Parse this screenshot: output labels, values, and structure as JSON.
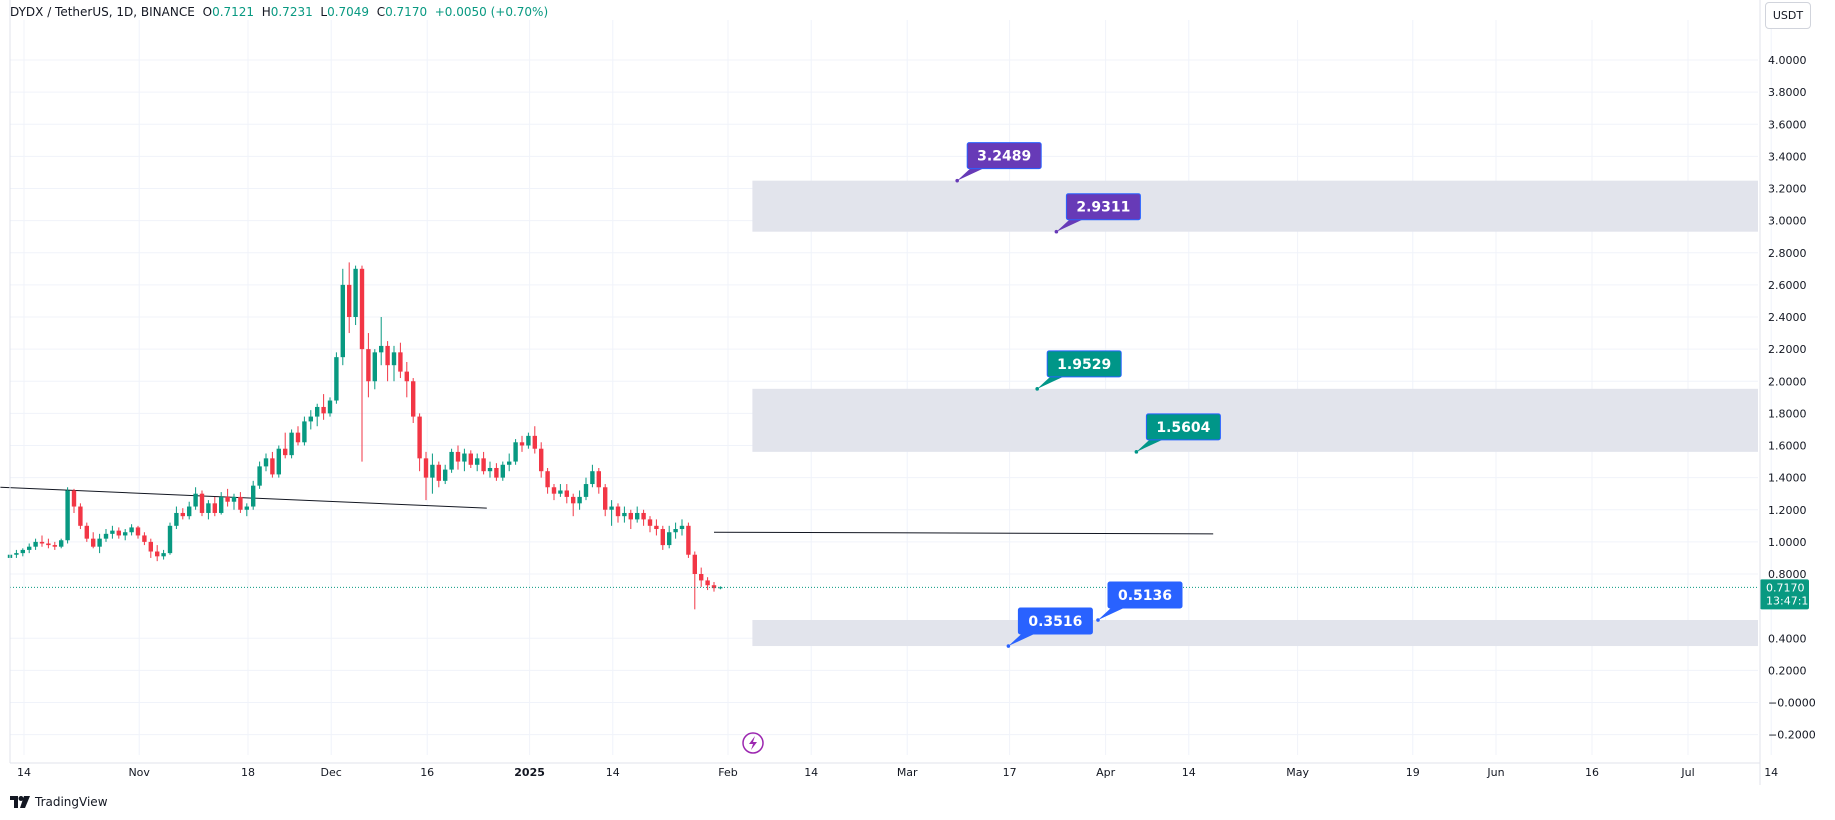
{
  "header": {
    "symbol": "DYDX / TetherUS, 1D, BINANCE",
    "open_label": "O",
    "open": "0.7121",
    "high_label": "H",
    "high": "0.7231",
    "low_label": "L",
    "low": "0.7049",
    "close_label": "C",
    "close": "0.7170",
    "change": "+0.0050 (+0.70%)"
  },
  "currency_button": "USDT",
  "branding": "TradingView",
  "colors": {
    "up": "#089981",
    "down": "#f23645",
    "zone": "#e0e3eb",
    "purple": "#673ab7",
    "teal": "#009688",
    "blue": "#2962ff",
    "grid": "#f0f3fa",
    "text": "#131722"
  },
  "chart_data": {
    "type": "candlestick",
    "price_axis": {
      "ticks": [
        "4.0000",
        "3.8000",
        "3.6000",
        "3.4000",
        "3.2000",
        "3.0000",
        "2.8000",
        "2.6000",
        "2.4000",
        "2.2000",
        "2.0000",
        "1.8000",
        "1.6000",
        "1.4000",
        "1.2000",
        "1.0000",
        "0.8000",
        "0.4000",
        "0.2000",
        "−0.0000",
        "−0.2000"
      ],
      "ylim": [
        -0.28,
        4.2
      ]
    },
    "time_axis": {
      "ticks": [
        {
          "label": "14",
          "bold": false,
          "day": 0
        },
        {
          "label": "Nov",
          "bold": false,
          "day": 18
        },
        {
          "label": "18",
          "bold": false,
          "day": 35
        },
        {
          "label": "Dec",
          "bold": false,
          "day": 48
        },
        {
          "label": "16",
          "bold": false,
          "day": 63
        },
        {
          "label": "2025",
          "bold": true,
          "day": 79
        },
        {
          "label": "14",
          "bold": false,
          "day": 92
        },
        {
          "label": "Feb",
          "bold": false,
          "day": 110
        },
        {
          "label": "14",
          "bold": false,
          "day": 123
        },
        {
          "label": "Mar",
          "bold": false,
          "day": 138
        },
        {
          "label": "17",
          "bold": false,
          "day": 154
        },
        {
          "label": "Apr",
          "bold": false,
          "day": 169
        },
        {
          "label": "14",
          "bold": false,
          "day": 182
        },
        {
          "label": "May",
          "bold": false,
          "day": 199
        },
        {
          "label": "19",
          "bold": false,
          "day": 217
        },
        {
          "label": "Jun",
          "bold": false,
          "day": 230
        },
        {
          "label": "16",
          "bold": false,
          "day": 245
        },
        {
          "label": "Jul",
          "bold": false,
          "day": 260
        },
        {
          "label": "14",
          "bold": false,
          "day": 273
        }
      ]
    },
    "last_price": {
      "value": 0.717,
      "label": "0.7170",
      "countdown": "13:47:13"
    },
    "zones": [
      {
        "bottom": 2.9311,
        "top": 3.2489,
        "start_day": 116,
        "end_day": 999
      },
      {
        "bottom": 1.5604,
        "top": 1.9529,
        "start_day": 116,
        "end_day": 999
      },
      {
        "bottom": 0.3516,
        "top": 0.5136,
        "start_day": 116,
        "end_day": 999
      }
    ],
    "price_labels": [
      {
        "text": "3.2489",
        "value": 3.2489,
        "anchor_day": 148,
        "color": "purple"
      },
      {
        "text": "2.9311",
        "value": 2.9311,
        "anchor_day": 163.5,
        "color": "purple"
      },
      {
        "text": "1.9529",
        "value": 1.9529,
        "anchor_day": 160.5,
        "color": "teal"
      },
      {
        "text": "1.5604",
        "value": 1.5604,
        "anchor_day": 176,
        "color": "teal"
      },
      {
        "text": "0.5136",
        "value": 0.5136,
        "anchor_day": 170,
        "color": "blue"
      },
      {
        "text": "0.3516",
        "value": 0.3516,
        "anchor_day": 156,
        "color": "blue"
      }
    ],
    "trend_lines": [
      {
        "x1": -1.5,
        "y1": 1.34,
        "x2": 74.5,
        "y2": 1.21
      },
      {
        "x1": 110,
        "y1": 1.06,
        "x2": 188,
        "y2": 1.05
      }
    ],
    "candles": [
      [
        0.9,
        0.94,
        0.88,
        0.92
      ],
      [
        0.92,
        0.95,
        0.9,
        0.93
      ],
      [
        0.93,
        0.96,
        0.91,
        0.95
      ],
      [
        0.95,
        0.99,
        0.93,
        0.97
      ],
      [
        0.97,
        1.02,
        0.95,
        1.0
      ],
      [
        1.0,
        1.04,
        0.97,
        0.99
      ],
      [
        0.99,
        1.02,
        0.96,
        0.98
      ],
      [
        0.98,
        1.0,
        0.95,
        0.97
      ],
      [
        0.97,
        1.02,
        0.96,
        1.01
      ],
      [
        1.01,
        1.34,
        0.99,
        1.32
      ],
      [
        1.32,
        1.33,
        1.18,
        1.22
      ],
      [
        1.22,
        1.24,
        1.08,
        1.1
      ],
      [
        1.1,
        1.12,
        1.0,
        1.02
      ],
      [
        1.02,
        1.06,
        0.96,
        0.97
      ],
      [
        0.97,
        1.05,
        0.93,
        1.02
      ],
      [
        1.02,
        1.08,
        1.0,
        1.05
      ],
      [
        1.05,
        1.1,
        1.02,
        1.07
      ],
      [
        1.07,
        1.09,
        1.02,
        1.04
      ],
      [
        1.04,
        1.08,
        1.01,
        1.06
      ],
      [
        1.06,
        1.11,
        1.04,
        1.09
      ],
      [
        1.09,
        1.1,
        1.02,
        1.04
      ],
      [
        1.04,
        1.06,
        0.98,
        1.0
      ],
      [
        1.0,
        1.02,
        0.9,
        0.94
      ],
      [
        0.94,
        0.98,
        0.88,
        0.91
      ],
      [
        0.91,
        0.95,
        0.89,
        0.93
      ],
      [
        0.93,
        1.12,
        0.92,
        1.1
      ],
      [
        1.1,
        1.22,
        1.08,
        1.18
      ],
      [
        1.18,
        1.21,
        1.14,
        1.16
      ],
      [
        1.16,
        1.25,
        1.14,
        1.22
      ],
      [
        1.22,
        1.34,
        1.2,
        1.3
      ],
      [
        1.3,
        1.32,
        1.16,
        1.18
      ],
      [
        1.18,
        1.26,
        1.14,
        1.24
      ],
      [
        1.24,
        1.28,
        1.16,
        1.18
      ],
      [
        1.18,
        1.31,
        1.17,
        1.28
      ],
      [
        1.28,
        1.33,
        1.22,
        1.25
      ],
      [
        1.25,
        1.3,
        1.2,
        1.28
      ],
      [
        1.28,
        1.31,
        1.18,
        1.2
      ],
      [
        1.2,
        1.24,
        1.16,
        1.22
      ],
      [
        1.22,
        1.38,
        1.2,
        1.35
      ],
      [
        1.35,
        1.5,
        1.33,
        1.47
      ],
      [
        1.47,
        1.55,
        1.44,
        1.52
      ],
      [
        1.52,
        1.56,
        1.4,
        1.42
      ],
      [
        1.42,
        1.6,
        1.4,
        1.58
      ],
      [
        1.58,
        1.68,
        1.52,
        1.54
      ],
      [
        1.54,
        1.7,
        1.52,
        1.68
      ],
      [
        1.68,
        1.72,
        1.6,
        1.62
      ],
      [
        1.62,
        1.78,
        1.6,
        1.75
      ],
      [
        1.75,
        1.82,
        1.7,
        1.78
      ],
      [
        1.78,
        1.86,
        1.72,
        1.84
      ],
      [
        1.84,
        1.92,
        1.76,
        1.8
      ],
      [
        1.8,
        1.9,
        1.78,
        1.88
      ],
      [
        1.88,
        2.18,
        1.86,
        2.15
      ],
      [
        2.15,
        2.7,
        2.1,
        2.6
      ],
      [
        2.6,
        2.74,
        2.3,
        2.4
      ],
      [
        2.4,
        2.72,
        2.35,
        2.7
      ],
      [
        2.7,
        2.72,
        1.5,
        2.2
      ],
      [
        2.2,
        2.3,
        1.9,
        2.0
      ],
      [
        2.0,
        2.2,
        1.95,
        2.18
      ],
      [
        2.18,
        2.4,
        2.1,
        2.22
      ],
      [
        2.22,
        2.25,
        2.0,
        2.1
      ],
      [
        2.1,
        2.22,
        2.0,
        2.18
      ],
      [
        2.18,
        2.24,
        2.02,
        2.06
      ],
      [
        2.06,
        2.12,
        1.9,
        2.0
      ],
      [
        2.0,
        2.02,
        1.74,
        1.78
      ],
      [
        1.78,
        1.8,
        1.44,
        1.52
      ],
      [
        1.52,
        1.56,
        1.26,
        1.4
      ],
      [
        1.4,
        1.55,
        1.3,
        1.48
      ],
      [
        1.48,
        1.5,
        1.34,
        1.38
      ],
      [
        1.38,
        1.48,
        1.36,
        1.45
      ],
      [
        1.45,
        1.58,
        1.43,
        1.56
      ],
      [
        1.56,
        1.6,
        1.45,
        1.5
      ],
      [
        1.5,
        1.58,
        1.44,
        1.55
      ],
      [
        1.55,
        1.57,
        1.46,
        1.48
      ],
      [
        1.48,
        1.55,
        1.44,
        1.52
      ],
      [
        1.52,
        1.56,
        1.42,
        1.44
      ],
      [
        1.44,
        1.5,
        1.4,
        1.46
      ],
      [
        1.46,
        1.49,
        1.38,
        1.4
      ],
      [
        1.4,
        1.5,
        1.38,
        1.48
      ],
      [
        1.48,
        1.55,
        1.44,
        1.5
      ],
      [
        1.5,
        1.64,
        1.48,
        1.62
      ],
      [
        1.62,
        1.66,
        1.56,
        1.6
      ],
      [
        1.6,
        1.68,
        1.58,
        1.66
      ],
      [
        1.66,
        1.72,
        1.55,
        1.58
      ],
      [
        1.58,
        1.62,
        1.4,
        1.44
      ],
      [
        1.44,
        1.46,
        1.3,
        1.34
      ],
      [
        1.34,
        1.36,
        1.26,
        1.3
      ],
      [
        1.3,
        1.36,
        1.28,
        1.32
      ],
      [
        1.32,
        1.36,
        1.24,
        1.28
      ],
      [
        1.28,
        1.3,
        1.16,
        1.24
      ],
      [
        1.24,
        1.32,
        1.2,
        1.28
      ],
      [
        1.28,
        1.4,
        1.26,
        1.36
      ],
      [
        1.36,
        1.48,
        1.34,
        1.44
      ],
      [
        1.44,
        1.46,
        1.3,
        1.34
      ],
      [
        1.34,
        1.36,
        1.16,
        1.2
      ],
      [
        1.2,
        1.26,
        1.1,
        1.22
      ],
      [
        1.22,
        1.24,
        1.12,
        1.16
      ],
      [
        1.16,
        1.22,
        1.12,
        1.18
      ],
      [
        1.18,
        1.2,
        1.08,
        1.14
      ],
      [
        1.14,
        1.22,
        1.12,
        1.18
      ],
      [
        1.18,
        1.2,
        1.1,
        1.14
      ],
      [
        1.14,
        1.16,
        1.06,
        1.1
      ],
      [
        1.1,
        1.14,
        1.04,
        1.08
      ],
      [
        1.08,
        1.1,
        0.95,
        0.98
      ],
      [
        0.98,
        1.1,
        0.96,
        1.06
      ],
      [
        1.06,
        1.12,
        1.02,
        1.08
      ],
      [
        1.08,
        1.14,
        1.04,
        1.1
      ],
      [
        1.1,
        1.12,
        0.9,
        0.92
      ],
      [
        0.92,
        0.94,
        0.58,
        0.8
      ],
      [
        0.8,
        0.84,
        0.72,
        0.76
      ],
      [
        0.76,
        0.78,
        0.7,
        0.73
      ],
      [
        0.73,
        0.75,
        0.69,
        0.712
      ],
      [
        0.712,
        0.7231,
        0.7049,
        0.717
      ]
    ]
  }
}
